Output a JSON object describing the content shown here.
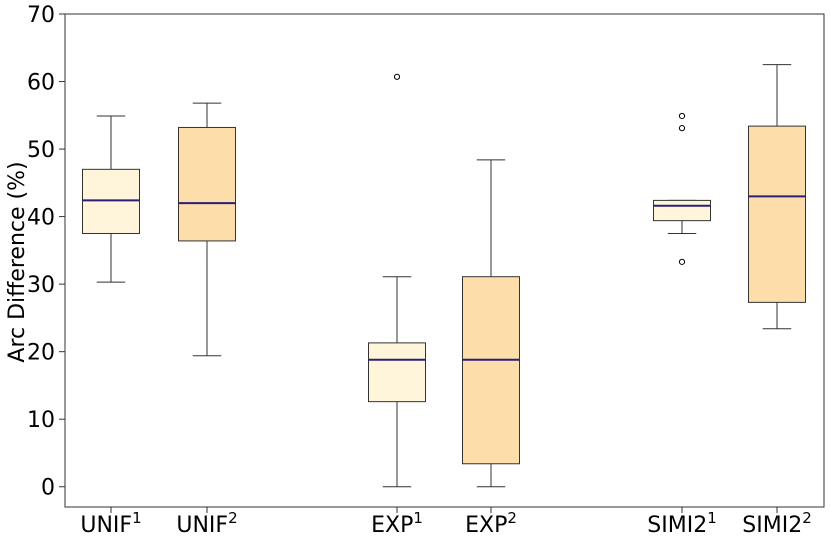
{
  "chart_data": {
    "type": "boxplot",
    "ylabel": "Arc Difference (%)",
    "xlabel": "",
    "ylim": [
      -3,
      70
    ],
    "yticks": [
      0,
      10,
      20,
      30,
      40,
      50,
      60,
      70
    ],
    "grid": false,
    "legend": "none",
    "colors": {
      "light_box": "#FFF5DB",
      "dark_box": "#FDDDAA",
      "median": "#2A1F7A",
      "edge": "#333333"
    },
    "boxes": [
      {
        "label": "UNIF",
        "sup": "1",
        "fill": "light",
        "whisker_low": 30.3,
        "q1": 37.5,
        "median": 42.4,
        "q3": 47.0,
        "whisker_high": 54.9,
        "outliers": []
      },
      {
        "label": "UNIF",
        "sup": "2",
        "fill": "dark",
        "whisker_low": 19.4,
        "q1": 36.4,
        "median": 42.0,
        "q3": 53.2,
        "whisker_high": 56.8,
        "outliers": []
      },
      {
        "label": "EXP",
        "sup": "1",
        "fill": "light",
        "whisker_low": 0.0,
        "q1": 12.6,
        "median": 18.8,
        "q3": 21.3,
        "whisker_high": 31.1,
        "outliers": [
          60.7
        ]
      },
      {
        "label": "EXP",
        "sup": "2",
        "fill": "dark",
        "whisker_low": 0.0,
        "q1": 3.4,
        "median": 18.8,
        "q3": 31.1,
        "whisker_high": 48.4,
        "outliers": []
      },
      {
        "label": "SIMI2",
        "sup": "1",
        "fill": "light",
        "whisker_low": 37.5,
        "q1": 39.4,
        "median": 41.6,
        "q3": 42.4,
        "whisker_high": 42.4,
        "outliers": [
          33.3,
          53.1,
          54.9
        ]
      },
      {
        "label": "SIMI2",
        "sup": "2",
        "fill": "dark",
        "whisker_low": 23.4,
        "q1": 27.3,
        "median": 43.0,
        "q3": 53.4,
        "whisker_high": 62.5,
        "outliers": []
      }
    ]
  }
}
